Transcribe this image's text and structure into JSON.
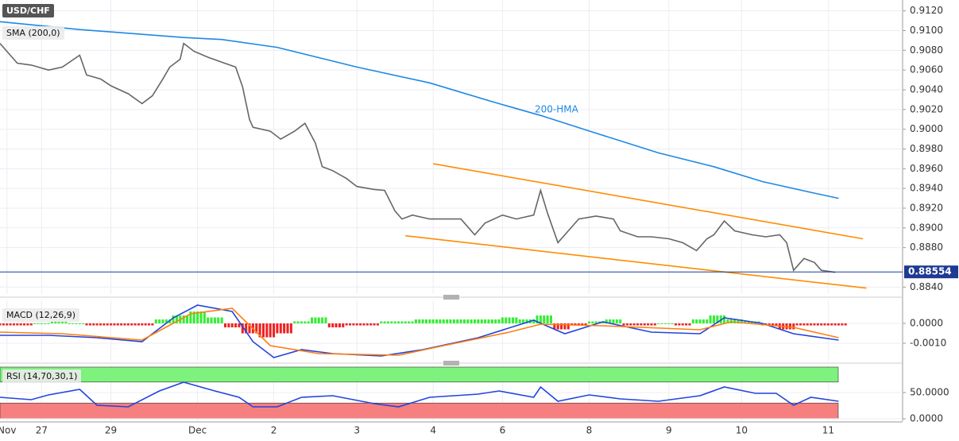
{
  "chart_data": [
    {
      "type": "line",
      "title": "USD/CHF",
      "xlim": [
        0,
        260
      ],
      "xticks": [
        {
          "value": 2,
          "label": "Nov"
        },
        {
          "value": 12,
          "label": "27"
        },
        {
          "value": 32,
          "label": "29"
        },
        {
          "value": 57,
          "label": "Dec"
        },
        {
          "value": 79,
          "label": "2"
        },
        {
          "value": 103,
          "label": "3"
        },
        {
          "value": 125,
          "label": "4"
        },
        {
          "value": 145,
          "label": "6"
        },
        {
          "value": 170,
          "label": "8"
        },
        {
          "value": 193,
          "label": "9"
        },
        {
          "value": 214,
          "label": "10"
        },
        {
          "value": 239,
          "label": "11"
        }
      ],
      "ylim": [
        0.8833,
        0.9131
      ],
      "yticks": [
        {
          "value": 0.912,
          "label": "0.9120"
        },
        {
          "value": 0.91,
          "label": "0.9100"
        },
        {
          "value": 0.908,
          "label": "0.9080"
        },
        {
          "value": 0.906,
          "label": "0.9060"
        },
        {
          "value": 0.904,
          "label": "0.9040"
        },
        {
          "value": 0.902,
          "label": "0.9020"
        },
        {
          "value": 0.9,
          "label": "0.9000"
        },
        {
          "value": 0.898,
          "label": "0.8980"
        },
        {
          "value": 0.896,
          "label": "0.8960"
        },
        {
          "value": 0.894,
          "label": "0.8940"
        },
        {
          "value": 0.892,
          "label": "0.8920"
        },
        {
          "value": 0.89,
          "label": "0.8900"
        },
        {
          "value": 0.888,
          "label": "0.8880"
        },
        {
          "value": 0.884,
          "label": "0.8840"
        }
      ],
      "grid": true,
      "last_price": 0.88554,
      "last_price_color": "#1f3a93",
      "annotation": "200-HMA",
      "series": [
        {
          "color": "#666666",
          "x": [
            0,
            2,
            5,
            9,
            14,
            18,
            23,
            25,
            29,
            32,
            37,
            41,
            44,
            47,
            49,
            52,
            53,
            56,
            60,
            64,
            68,
            70,
            72,
            73,
            78,
            81,
            85,
            88,
            91,
            93,
            96,
            100,
            103,
            108,
            111,
            114,
            116,
            119,
            124,
            128,
            133,
            137,
            140,
            145,
            149,
            154,
            156,
            158,
            161,
            164,
            167,
            172,
            177,
            179,
            184,
            188,
            193,
            197,
            201,
            204,
            206,
            209,
            212,
            217,
            221,
            225,
            227,
            229,
            232,
            235,
            237,
            241
          ],
          "values": [
            0.9087,
            0.9079,
            0.9067,
            0.9065,
            0.906,
            0.9063,
            0.9075,
            0.9055,
            0.9051,
            0.9044,
            0.9036,
            0.9026,
            0.9034,
            0.9051,
            0.9063,
            0.9071,
            0.9087,
            0.9079,
            0.9073,
            0.9068,
            0.9063,
            0.9043,
            0.901,
            0.9002,
            0.8998,
            0.899,
            0.8998,
            0.9006,
            0.8986,
            0.8962,
            0.8958,
            0.895,
            0.8942,
            0.8939,
            0.8938,
            0.8917,
            0.8909,
            0.8913,
            0.8909,
            0.8909,
            0.8909,
            0.8893,
            0.8905,
            0.8913,
            0.8909,
            0.8913,
            0.8938,
            0.8915,
            0.8885,
            0.8897,
            0.8909,
            0.8912,
            0.8909,
            0.8897,
            0.8891,
            0.8891,
            0.8889,
            0.8885,
            0.8877,
            0.8889,
            0.8893,
            0.8907,
            0.8897,
            0.8893,
            0.8891,
            0.8893,
            0.8885,
            0.8857,
            0.8869,
            0.8865,
            0.8857,
            0.8855
          ]
        },
        {
          "name": "SMA (200,0)",
          "color": "#1e88e5",
          "x": [
            0,
            23,
            53,
            64,
            80,
            103,
            124,
            142,
            156,
            172,
            190,
            206,
            220,
            234,
            242
          ],
          "values": [
            0.9109,
            0.9101,
            0.9093,
            0.9091,
            0.9083,
            0.9063,
            0.9047,
            0.9028,
            0.9014,
            0.8996,
            0.8976,
            0.8962,
            0.8947,
            0.8936,
            0.893
          ]
        },
        {
          "color": "#ff8c00",
          "x": [
            125,
            249
          ],
          "values": [
            0.8965,
            0.8889
          ]
        },
        {
          "color": "#ff8c00",
          "x": [
            117,
            250
          ],
          "values": [
            0.8892,
            0.8839
          ]
        }
      ]
    },
    {
      "type": "macd",
      "title": "MACD (12,26,9)",
      "ylim": [
        -0.00192,
        0.00116
      ],
      "yticks": [
        {
          "value": 0,
          "label": "0.0000"
        },
        {
          "value": -0.001,
          "label": "-0.0010"
        }
      ],
      "up_color": "#33ee33",
      "down_color": "#ee2222",
      "histogram": {
        "x": [
          0,
          5,
          10,
          15,
          20,
          25,
          30,
          35,
          40,
          45,
          50,
          55,
          60,
          65,
          70,
          75,
          80,
          85,
          90,
          95,
          100,
          105,
          110,
          115,
          120,
          125,
          130,
          135,
          140,
          145,
          150,
          155,
          160,
          165,
          170,
          175,
          180,
          185,
          190,
          195,
          200,
          205,
          210,
          215,
          220,
          225,
          230,
          235,
          240
        ],
        "values": [
          -0.0001,
          -0.0001,
          0,
          0.0001,
          0,
          -0.0001,
          -0.0001,
          -0.0001,
          -0.0001,
          0.0002,
          0.0004,
          0.0006,
          0.0003,
          -0.0002,
          -0.0005,
          -0.0007,
          -0.0005,
          0.0001,
          0.0003,
          -0.0002,
          -0.0001,
          -0.0001,
          0.0001,
          0.0001,
          0.0002,
          0.0002,
          0.0002,
          0.0002,
          0.0002,
          0.0003,
          0.0002,
          0.0004,
          -0.0003,
          -0.0001,
          0.0001,
          0.0002,
          -0.0001,
          -0.0001,
          0,
          -0.0001,
          0.0002,
          0.0004,
          0.0002,
          0.0001,
          -0.0001,
          -0.0003,
          -0.0001,
          -0.0001,
          -0.0001
        ]
      },
      "series": [
        {
          "color": "#2244dd",
          "x": [
            0,
            14,
            28,
            41,
            50,
            57,
            67,
            73,
            79,
            87,
            96,
            110,
            122,
            138,
            154,
            163,
            174,
            188,
            202,
            209,
            220,
            229,
            242
          ],
          "values": [
            -0.0006,
            -0.0006,
            -0.00072,
            -0.00092,
            0.00028,
            0.00092,
            0.0006,
            -0.00092,
            -0.00172,
            -0.00132,
            -0.00152,
            -0.00164,
            -0.00132,
            -0.00072,
            0.00016,
            -0.00052,
            8e-05,
            -0.00044,
            -0.00052,
            0.00028,
            0,
            -0.00052,
            -0.00084
          ]
        },
        {
          "color": "#ff7f0e",
          "x": [
            0,
            18,
            41,
            55,
            67,
            78,
            92,
            115,
            128,
            147,
            156,
            174,
            202,
            211,
            229,
            242
          ],
          "values": [
            -0.00044,
            -0.00052,
            -0.00084,
            0.00048,
            0.00076,
            -0.00112,
            -0.00152,
            -0.0016,
            -0.00112,
            -0.00044,
            -4e-05,
            -0.00012,
            -0.00032,
            8e-05,
            -0.0002,
            -0.00072
          ]
        }
      ]
    },
    {
      "type": "rsi",
      "title": "RSI (14,70,30,1)",
      "ylim": [
        -4.5,
        101.5
      ],
      "yticks": [
        {
          "value": 50,
          "label": "50.0000"
        },
        {
          "value": 0,
          "label": "0.0000"
        }
      ],
      "overbought": 70,
      "oversold": 30,
      "overbought_color": "#7df27d",
      "oversold_color": "#f67f7f",
      "series": [
        {
          "color": "#2244dd",
          "x": [
            0,
            9,
            14,
            23,
            28,
            37,
            46,
            53,
            62,
            69,
            73,
            80,
            87,
            96,
            108,
            115,
            124,
            138,
            144,
            154,
            156,
            161,
            170,
            179,
            190,
            202,
            209,
            218,
            224,
            229,
            234,
            242
          ],
          "values": [
            40.9,
            36.4,
            45.5,
            56.1,
            25.8,
            22.7,
            53,
            69.7,
            53,
            40.9,
            22.7,
            22.7,
            40.9,
            43.9,
            28.8,
            22.7,
            40.9,
            47,
            53,
            40.9,
            60.6,
            33.3,
            45.5,
            37.9,
            33.3,
            43.9,
            60.6,
            48.5,
            48.5,
            25.8,
            40.9,
            33.3
          ]
        }
      ]
    }
  ]
}
